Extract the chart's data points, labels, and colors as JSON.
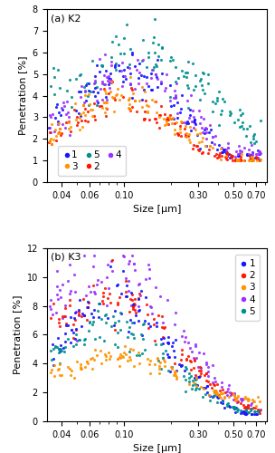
{
  "title_a": "(a) K2",
  "title_b": "(b) K3",
  "xlabel": "Size [μm]",
  "ylabel": "Penetration [%]",
  "colors": {
    "1": "#1515FF",
    "2": "#FF1500",
    "3": "#FF9500",
    "4": "#9B30FF",
    "5": "#009090"
  },
  "ylim_a": [
    0,
    8
  ],
  "ylim_b": [
    0,
    12
  ],
  "xticks": [
    0.04,
    0.06,
    0.1,
    0.3,
    0.5,
    0.7
  ],
  "xticklabels": [
    "0.04",
    "0.06",
    "0.10",
    "0.30",
    "0.50",
    "0.70"
  ],
  "xlim": [
    0.032,
    0.82
  ]
}
